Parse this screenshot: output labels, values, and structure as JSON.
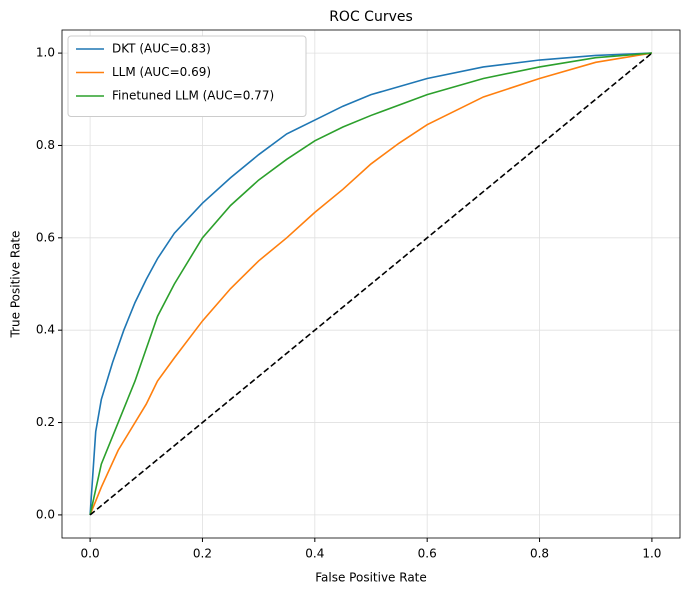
{
  "chart_data": {
    "type": "line",
    "title": "ROC Curves",
    "xlabel": "False Positive Rate",
    "ylabel": "True Positive Rate",
    "xlim": [
      -0.05,
      1.05
    ],
    "ylim": [
      -0.05,
      1.05
    ],
    "xticks": [
      {
        "value": 0,
        "label": "0.0"
      },
      0.2,
      0.4,
      0.6,
      0.8,
      {
        "value": 1,
        "label": "1.0"
      }
    ],
    "yticks": [
      {
        "value": 0,
        "label": "0.0"
      },
      0.2,
      0.4,
      0.6,
      0.8,
      {
        "value": 1,
        "label": "1.0"
      }
    ],
    "grid": true,
    "legend": "upper left",
    "series": [
      {
        "name": "DKT (AUC=0.83)",
        "color": "#1f77b4",
        "x": [
          0,
          0.01,
          0.02,
          0.04,
          0.06,
          0.08,
          0.1,
          0.12,
          0.15,
          0.2,
          0.25,
          0.3,
          0.35,
          0.4,
          0.45,
          0.5,
          0.6,
          0.7,
          0.8,
          0.9,
          1
        ],
        "values": [
          0,
          0.18,
          0.25,
          0.33,
          0.4,
          0.46,
          0.51,
          0.555,
          0.61,
          0.675,
          0.73,
          0.78,
          0.825,
          0.855,
          0.885,
          0.91,
          0.945,
          0.97,
          0.985,
          0.995,
          1
        ]
      },
      {
        "name": "LLM (AUC=0.69)",
        "color": "#ff7f0e",
        "x": [
          0,
          0.02,
          0.05,
          0.1,
          0.12,
          0.15,
          0.2,
          0.25,
          0.3,
          0.35,
          0.4,
          0.45,
          0.5,
          0.55,
          0.6,
          0.7,
          0.8,
          0.9,
          1
        ],
        "values": [
          0,
          0.06,
          0.14,
          0.24,
          0.29,
          0.34,
          0.42,
          0.49,
          0.55,
          0.6,
          0.655,
          0.705,
          0.76,
          0.805,
          0.845,
          0.905,
          0.945,
          0.98,
          1
        ]
      },
      {
        "name": "Finetuned LLM (AUC=0.77)",
        "color": "#2ca02c",
        "x": [
          0,
          0.02,
          0.05,
          0.08,
          0.1,
          0.12,
          0.15,
          0.2,
          0.25,
          0.3,
          0.35,
          0.4,
          0.45,
          0.5,
          0.6,
          0.7,
          0.8,
          0.9,
          1
        ],
        "values": [
          0,
          0.11,
          0.2,
          0.29,
          0.36,
          0.43,
          0.5,
          0.6,
          0.67,
          0.725,
          0.77,
          0.81,
          0.84,
          0.865,
          0.91,
          0.945,
          0.97,
          0.99,
          1
        ]
      },
      {
        "color": "#000000",
        "style": "dashed",
        "x": [
          0,
          1
        ],
        "values": [
          0,
          1
        ]
      }
    ]
  }
}
